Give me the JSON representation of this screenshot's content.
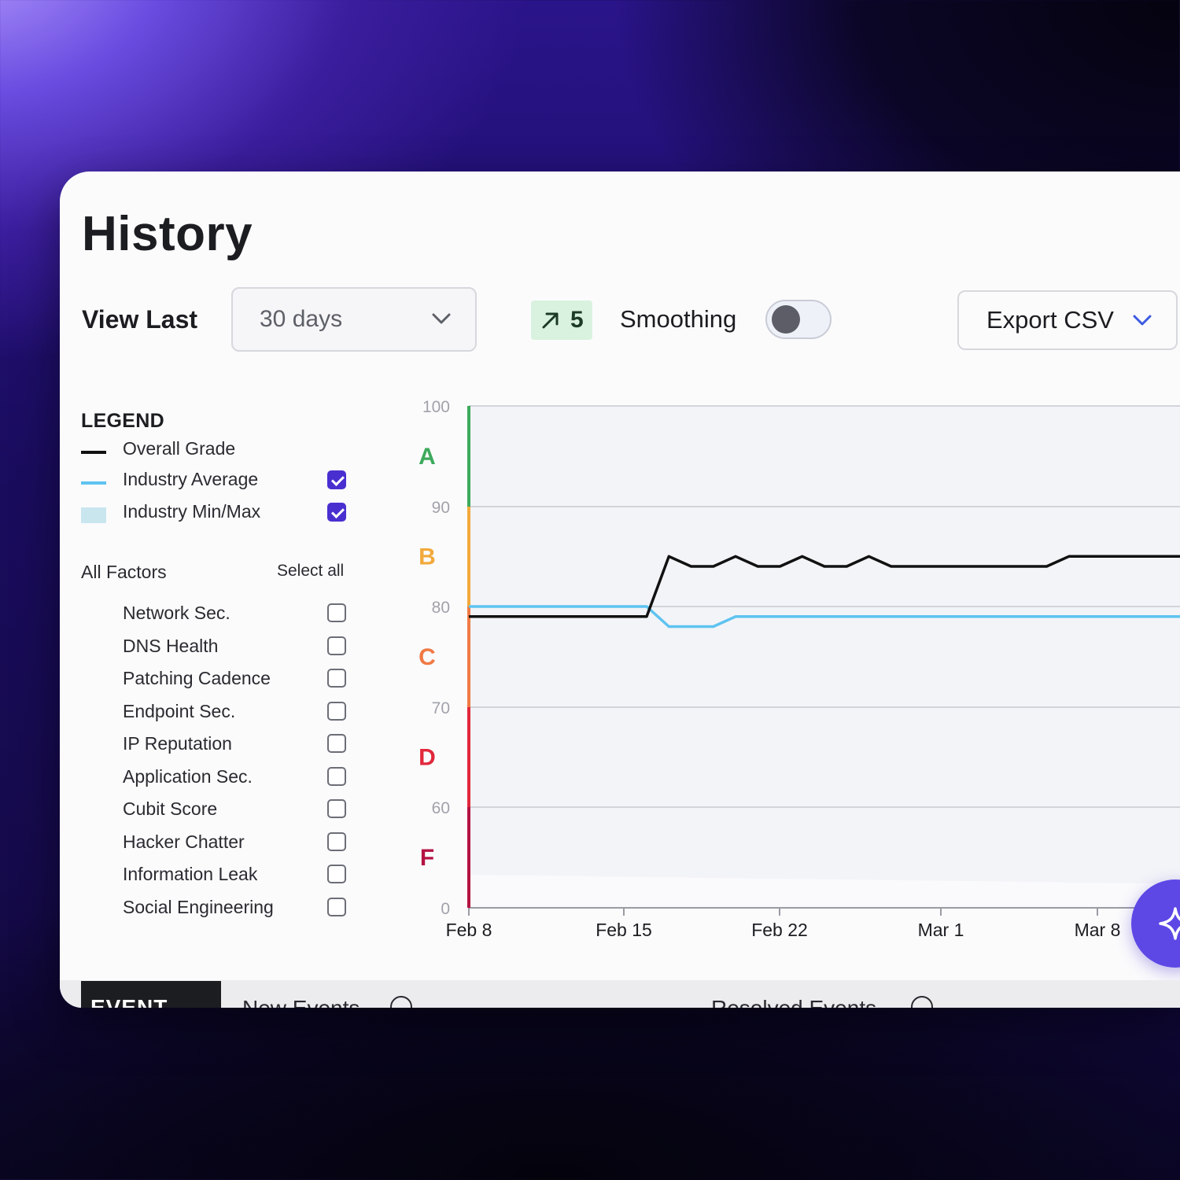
{
  "header": {
    "title": "History"
  },
  "controls": {
    "view_last_label": "View Last",
    "range_value": "30 days",
    "trend_value": "5",
    "smoothing_label": "Smoothing",
    "smoothing_on": false,
    "export_label": "Export CSV"
  },
  "legend": {
    "title": "LEGEND",
    "items": [
      {
        "label": "Overall Grade",
        "color": "#111111",
        "kind": "line",
        "checked": null
      },
      {
        "label": "Industry Average",
        "color": "#5ec3f0",
        "kind": "line",
        "checked": true
      },
      {
        "label": "Industry Min/Max",
        "color": "#c9e6ef",
        "kind": "box",
        "checked": true
      }
    ]
  },
  "factors": {
    "header": "All Factors",
    "select_all": "Select all",
    "items": [
      {
        "label": "Network Sec.",
        "checked": false
      },
      {
        "label": "DNS Health",
        "checked": false
      },
      {
        "label": "Patching Cadence",
        "checked": false
      },
      {
        "label": "Endpoint Sec.",
        "checked": false
      },
      {
        "label": "IP Reputation",
        "checked": false
      },
      {
        "label": "Application Sec.",
        "checked": false
      },
      {
        "label": "Cubit Score",
        "checked": false
      },
      {
        "label": "Hacker Chatter",
        "checked": false
      },
      {
        "label": "Information Leak",
        "checked": false
      },
      {
        "label": "Social Engineering",
        "checked": false
      }
    ]
  },
  "chart_data": {
    "type": "line",
    "x_ticks": [
      "Feb 8",
      "Feb 15",
      "Feb 22",
      "Mar 1",
      "Mar 8"
    ],
    "y_ticks": [
      100,
      90,
      80,
      70,
      60,
      0
    ],
    "grades": [
      {
        "letter": "A",
        "color": "#3daa5c"
      },
      {
        "letter": "B",
        "color": "#f2a93b"
      },
      {
        "letter": "C",
        "color": "#f07a45"
      },
      {
        "letter": "D",
        "color": "#e1283c"
      },
      {
        "letter": "F",
        "color": "#b41342"
      }
    ],
    "series": [
      {
        "color": "#111111",
        "x": [
          "2024-02-08",
          "2024-02-09",
          "2024-02-10",
          "2024-02-11",
          "2024-02-12",
          "2024-02-13",
          "2024-02-14",
          "2024-02-15",
          "2024-02-16",
          "2024-02-17",
          "2024-02-18",
          "2024-02-19",
          "2024-02-20",
          "2024-02-21",
          "2024-02-22",
          "2024-02-23",
          "2024-02-24",
          "2024-02-25",
          "2024-02-26",
          "2024-02-27",
          "2024-02-28",
          "2024-02-29",
          "2024-03-01",
          "2024-03-02",
          "2024-03-03",
          "2024-03-04",
          "2024-03-05",
          "2024-03-06",
          "2024-03-07",
          "2024-03-08",
          "2024-03-09",
          "2024-03-10",
          "2024-03-11"
        ],
        "values": [
          79,
          79,
          79,
          79,
          79,
          79,
          79,
          79,
          79,
          85,
          84,
          84,
          85,
          84,
          84,
          85,
          84,
          84,
          85,
          84,
          84,
          84,
          84,
          84,
          84,
          84,
          84,
          85,
          85,
          85,
          85,
          85,
          85
        ]
      },
      {
        "color": "#5ec3f0",
        "x": [
          "2024-02-08",
          "2024-02-16",
          "2024-02-17",
          "2024-02-18",
          "2024-02-19",
          "2024-02-20",
          "2024-03-11"
        ],
        "values": [
          80,
          80,
          78,
          78,
          78,
          79,
          79
        ]
      }
    ]
  },
  "bottom_tabs": {
    "event_log": "EVENT LOG",
    "new_events": "New Events",
    "resolved_events": "Resolved Events"
  }
}
